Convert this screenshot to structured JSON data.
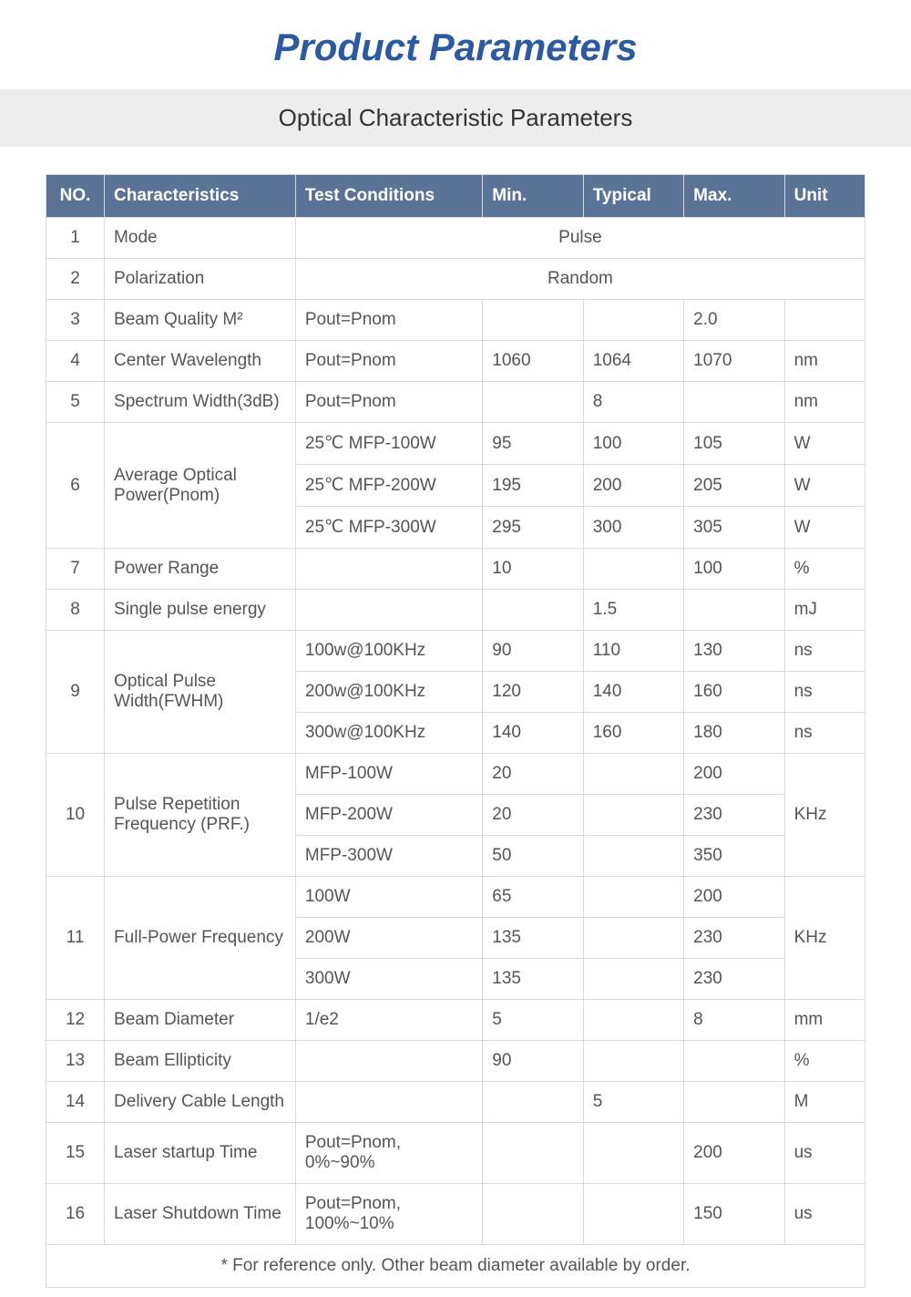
{
  "title": "Product Parameters",
  "subtitle": "Optical Characteristic Parameters",
  "columns": [
    "NO.",
    "Characteristics",
    "Test Conditions",
    "Min.",
    "Typical",
    "Max.",
    "Unit"
  ],
  "rows": [
    {
      "no": "1",
      "char": "Mode",
      "span": "Pulse"
    },
    {
      "no": "2",
      "char": "Polarization",
      "span": "Random"
    },
    {
      "no": "3",
      "char": "Beam Quality M²",
      "test": "Pout=Pnom",
      "min": "",
      "typ": "",
      "max": "2.0",
      "unit": ""
    },
    {
      "no": "4",
      "char": "Center Wavelength",
      "test": "Pout=Pnom",
      "min": "1060",
      "typ": "1064",
      "max": "1070",
      "unit": "nm"
    },
    {
      "no": "5",
      "char": "Spectrum Width(3dB)",
      "test": "Pout=Pnom",
      "min": "",
      "typ": "8",
      "max": "",
      "unit": "nm"
    },
    {
      "no": "6",
      "char": "Average Optical Power(Pnom)",
      "sub": [
        {
          "test": "25℃ MFP-100W",
          "min": "95",
          "typ": "100",
          "max": "105",
          "unit": "W"
        },
        {
          "test": "25℃ MFP-200W",
          "min": "195",
          "typ": "200",
          "max": "205",
          "unit": "W"
        },
        {
          "test": "25℃ MFP-300W",
          "min": "295",
          "typ": "300",
          "max": "305",
          "unit": "W"
        }
      ]
    },
    {
      "no": "7",
      "char": "Power Range",
      "test": "",
      "min": "10",
      "typ": "",
      "max": "100",
      "unit": "%"
    },
    {
      "no": "8",
      "char": "Single pulse energy",
      "test": "",
      "min": "",
      "typ": "1.5",
      "max": "",
      "unit": "mJ"
    },
    {
      "no": "9",
      "char": "Optical Pulse Width(FWHM)",
      "sub": [
        {
          "test": "100w@100KHz",
          "min": "90",
          "typ": "110",
          "max": "130",
          "unit": "ns"
        },
        {
          "test": "200w@100KHz",
          "min": "120",
          "typ": "140",
          "max": "160",
          "unit": "ns"
        },
        {
          "test": "300w@100KHz",
          "min": "140",
          "typ": "160",
          "max": "180",
          "unit": "ns"
        }
      ]
    },
    {
      "no": "10",
      "char": "Pulse Repetition Frequency (PRF.)",
      "unitspan": "KHz",
      "sub": [
        {
          "test": "MFP-100W",
          "min": "20",
          "typ": "",
          "max": "200"
        },
        {
          "test": "MFP-200W",
          "min": "20",
          "typ": "",
          "max": "230"
        },
        {
          "test": "MFP-300W",
          "min": "50",
          "typ": "",
          "max": "350"
        }
      ]
    },
    {
      "no": "11",
      "char": "Full-Power Frequency",
      "unitspan": "KHz",
      "sub": [
        {
          "test": "100W",
          "min": "65",
          "typ": "",
          "max": "200"
        },
        {
          "test": "200W",
          "min": "135",
          "typ": "",
          "max": "230"
        },
        {
          "test": "300W",
          "min": "135",
          "typ": "",
          "max": "230"
        }
      ]
    },
    {
      "no": "12",
      "char": "Beam Diameter",
      "test": "1/e2",
      "min": "5",
      "typ": "",
      "max": "8",
      "unit": "mm"
    },
    {
      "no": "13",
      "char": "Beam Ellipticity",
      "test": "",
      "min": "90",
      "typ": "",
      "max": "",
      "unit": "%"
    },
    {
      "no": "14",
      "char": "Delivery Cable Length",
      "test": "",
      "min": "",
      "typ": "5",
      "max": "",
      "unit": "M"
    },
    {
      "no": "15",
      "char": "Laser startup Time",
      "test": "Pout=Pnom, 0%~90%",
      "min": "",
      "typ": "",
      "max": "200",
      "unit": "us"
    },
    {
      "no": "16",
      "char": "Laser Shutdown Time",
      "test": "Pout=Pnom, 100%~10%",
      "min": "",
      "typ": "",
      "max": "150",
      "unit": "us"
    }
  ],
  "footnote": "* For reference only. Other beam diameter available by order.",
  "colors": {
    "title": "#2c5aa0",
    "header_bg": "#5a7396",
    "header_text": "#ffffff",
    "subtitle_bg": "#ededed",
    "border": "#d9d9d9",
    "text": "#555555"
  }
}
